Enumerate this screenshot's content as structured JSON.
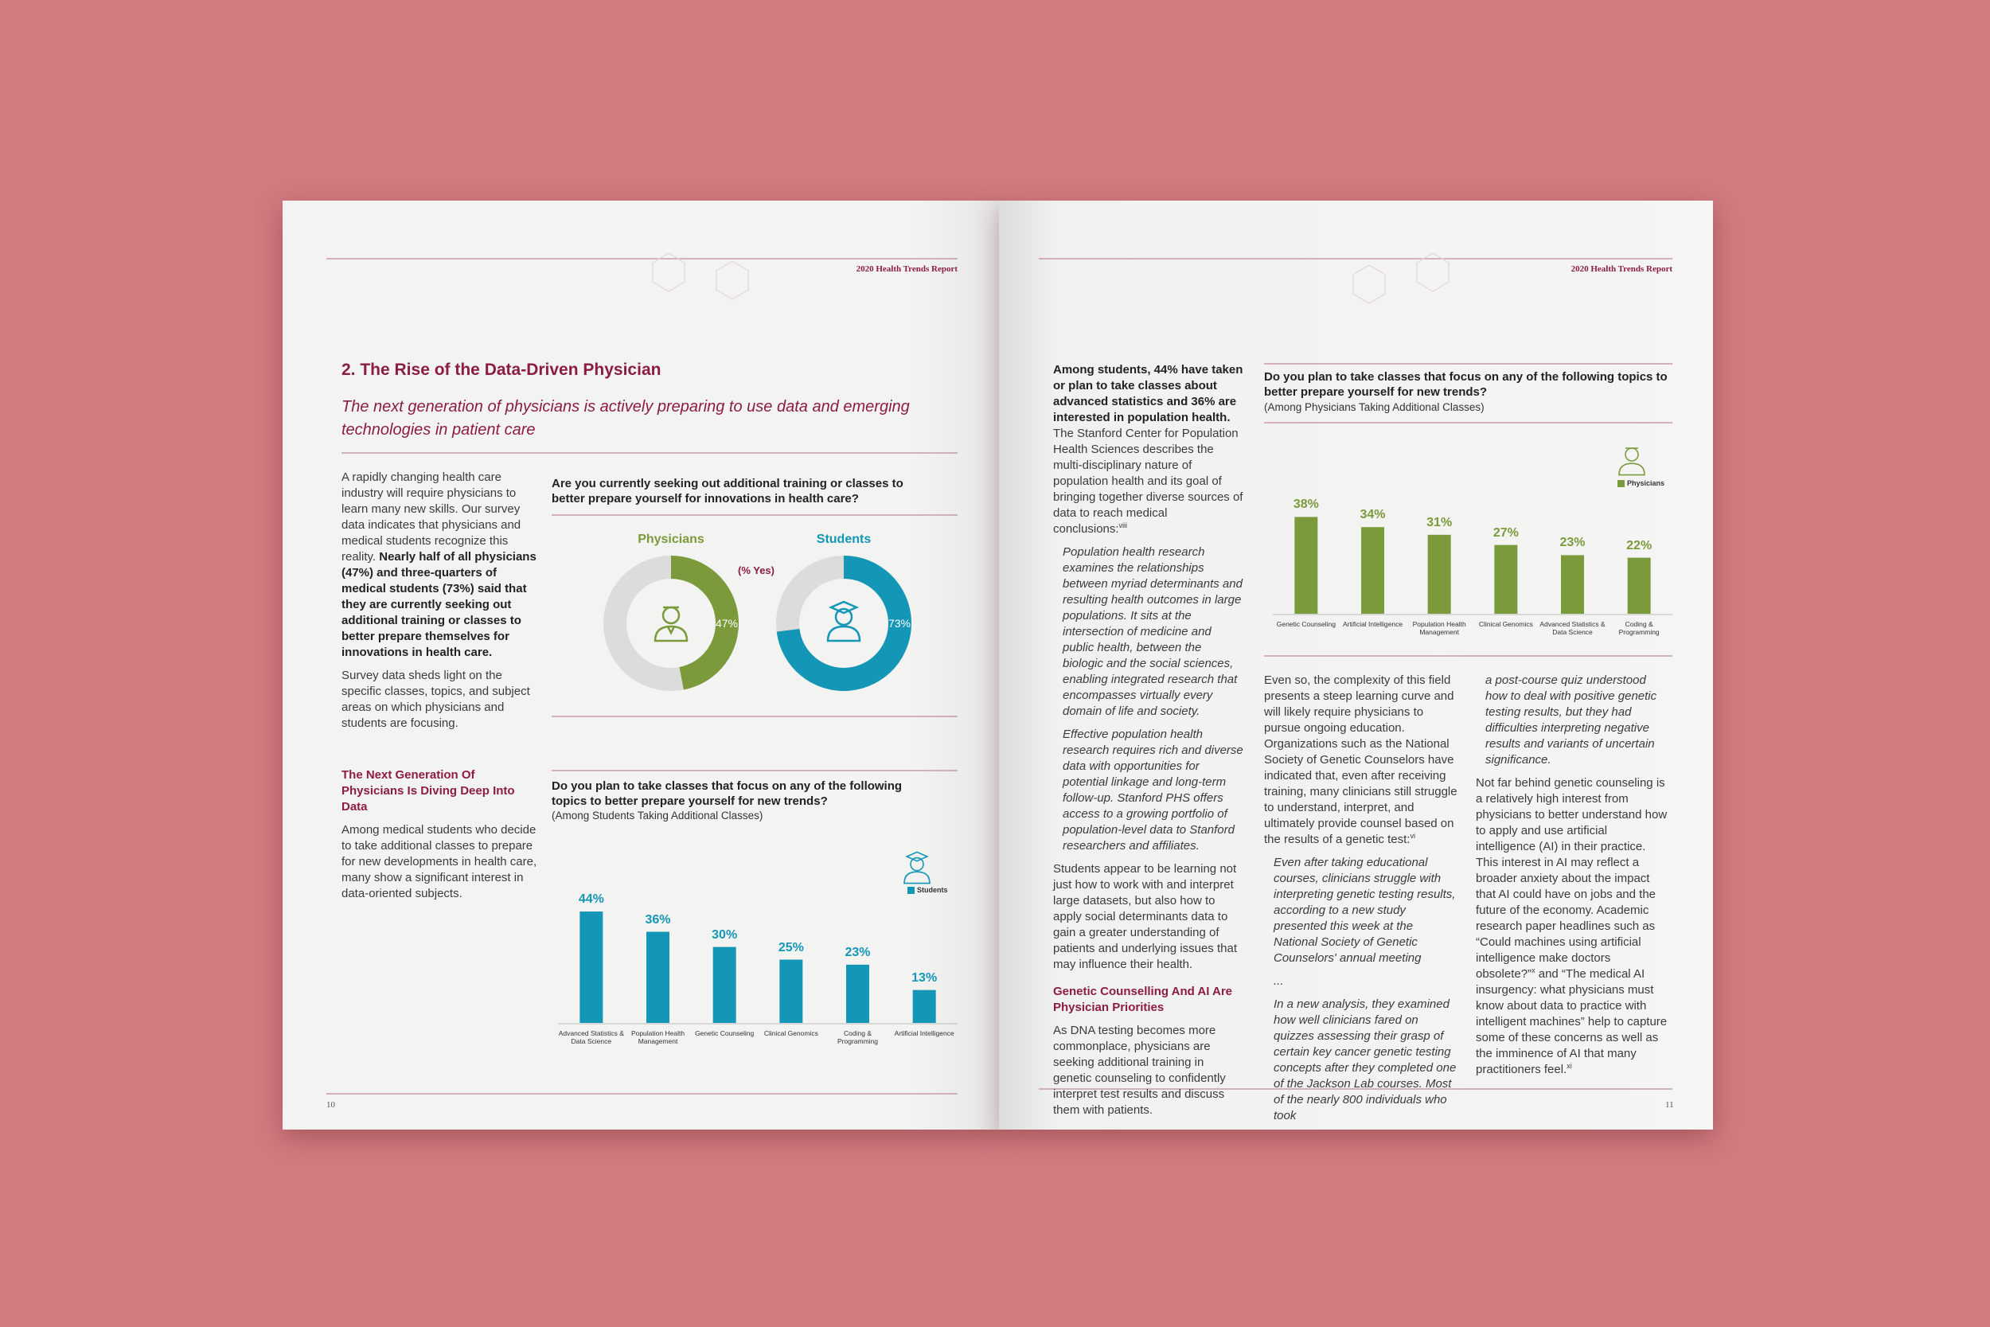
{
  "left_page": {
    "running_head": "2020 Health Trends Report",
    "page_number": 10,
    "title": "2. The Rise of the Data-Driven Physician",
    "subtitle": "The next generation of physicians is actively preparing to use data and emerging technologies in patient care",
    "intro": [
      {
        "runs": [
          {
            "text": "A rapidly changing health care industry will require physicians to learn many new skills. Our survey data indicates that physicians and medical students recognize this reality. "
          },
          {
            "text": "Nearly half of all physicians (47%) and three-quarters of medical students (73%) said that they are currently seeking out additional training or classes to better prepare themselves for innovations in health care.",
            "bold": true
          }
        ]
      },
      {
        "runs": [
          {
            "text": "Survey data sheds light on the specific classes, topics, and subject areas on which physicians and students are focusing."
          }
        ]
      }
    ],
    "section": [
      {
        "heading": "The Next Generation Of Physicians Is Diving Deep Into Data"
      },
      {
        "runs": [
          {
            "text": "Among medical students who decide to take additional classes to prepare for new developments in health care, many show a significant interest in data-oriented subjects."
          }
        ]
      }
    ]
  },
  "right_page": {
    "running_head": "2020 Health Trends Report",
    "page_number": 11,
    "columns": [
      [
        {
          "runs": [
            {
              "text": "Among students, 44% have taken or plan to take classes about advanced statistics and 36% are interested in population health.",
              "bold": true
            },
            {
              "text": " The Stanford Center for Population Health Sciences describes the multi-disciplinary nature of population health and its goal of bringing together diverse sources of data to reach medical conclusions:"
            },
            {
              "text": "viii",
              "sup": true
            }
          ]
        },
        {
          "italic": true,
          "runs": [
            {
              "text": "Population health research examines the relationships between myriad determinants and resulting health outcomes in large populations. It sits at the intersection of medicine and public health, between the biologic and the social sciences, enabling integrated research that encompasses virtually every domain of life and society."
            }
          ]
        },
        {
          "italic": true,
          "runs": [
            {
              "text": "Effective population health research requires rich and diverse data with opportunities for potential linkage and long-term follow-up. Stanford PHS offers access to a growing portfolio of population-level data to Stanford researchers and affiliates."
            }
          ]
        },
        {
          "runs": [
            {
              "text": "Students appear to be learning not just how to work with and interpret large datasets, but also how to apply social determinants data to gain a greater understanding of patients and underlying issues that may influence their health."
            }
          ]
        },
        {
          "heading": "Genetic Counselling And AI Are Physician Priorities"
        },
        {
          "runs": [
            {
              "text": "As DNA testing becomes more commonplace, physicians are seeking additional training in genetic counseling to confidently interpret test results and discuss them with patients."
            }
          ]
        }
      ],
      [
        {
          "runs": [
            {
              "text": "Even so, the complexity of this field presents a steep learning curve and will likely require physicians to pursue ongoing education. Organizations such as the National Society of Genetic Counselors have indicated that, even after receiving training, many clinicians still struggle to understand, interpret, and ultimately provide counsel based on the results of a genetic test:"
            },
            {
              "text": "vi",
              "sup": true
            }
          ]
        },
        {
          "italic": true,
          "runs": [
            {
              "text": "Even after taking educational courses, clinicians struggle with interpreting genetic testing results, according to a new study presented this week at the National Society of Genetic Counselors' annual meeting"
            }
          ]
        },
        {
          "italic": true,
          "runs": [
            {
              "text": "..."
            }
          ]
        },
        {
          "italic": true,
          "runs": [
            {
              "text": "In a new analysis, they examined how well clinicians fared on quizzes assessing their grasp of certain key cancer genetic testing concepts after they completed one of the Jackson Lab courses. Most of the nearly 800 individuals who took"
            }
          ]
        }
      ],
      [
        {
          "italic": true,
          "runs": [
            {
              "text": "a post-course quiz understood how to deal with positive genetic testing results, but they had difficulties interpreting negative results and variants of uncertain significance."
            }
          ]
        },
        {
          "runs": [
            {
              "text": "Not far behind genetic counseling is a relatively high interest from physicians to better understand how to apply and use artificial intelligence (AI) in their practice. This interest in AI may reflect a broader anxiety about the impact that AI could have on jobs and the future of the economy. Academic research paper headlines such as “Could machines using artificial intelligence make doctors obsolete?”"
            },
            {
              "text": "x",
              "sup": true
            },
            {
              "text": " and “The medical AI insurgency: what physicians must know about data to practice with intelligent machines” help to capture some of these concerns as well as the imminence of AI that many practitioners feel."
            },
            {
              "text": "xi",
              "sup": true
            }
          ]
        }
      ]
    ]
  },
  "chart_data": [
    {
      "type": "donut",
      "title": "Are you currently seeking out additional training or classes to better prepare yourself for innovations in health care?",
      "subtitle": "(% Yes)",
      "categories": [
        "Physicians",
        "Students"
      ],
      "values": [
        47,
        73
      ],
      "value_labels": [
        "47%",
        "73%"
      ],
      "colors": [
        "#7b9a3c",
        "#1496b6"
      ]
    },
    {
      "type": "bar",
      "title": "Do you plan to take classes that focus on any of the following topics to better prepare yourself for new trends?",
      "subtitle": "(Among Students Taking Additional Classes)",
      "categories": [
        "Advanced Statistics & Data Science",
        "Population Health Management",
        "Genetic Counseling",
        "Clinical Genomics",
        "Coding & Programming",
        "Artificial Intelligence"
      ],
      "series": [
        {
          "name": "Students",
          "color": "#1496b6",
          "values": [
            44,
            36,
            30,
            25,
            23,
            13
          ],
          "value_labels": [
            "44%",
            "36%",
            "30%",
            "25%",
            "23%",
            "13%"
          ]
        }
      ]
    },
    {
      "type": "bar",
      "title": "Do you plan to take classes that focus on any of the following topics to better prepare yourself for new trends?",
      "subtitle": "(Among Physicians Taking Additional Classes)",
      "categories": [
        "Genetic Counseling",
        "Artificial Intelligence",
        "Population Health Management",
        "Clinical Genomics",
        "Advanced Statistics & Data Science",
        "Coding & Programming"
      ],
      "series": [
        {
          "name": "Physicians",
          "color": "#7b9a3c",
          "values": [
            38,
            34,
            31,
            27,
            23,
            22
          ],
          "value_labels": [
            "38%",
            "34%",
            "31%",
            "27%",
            "23%",
            "22%"
          ]
        }
      ]
    }
  ]
}
